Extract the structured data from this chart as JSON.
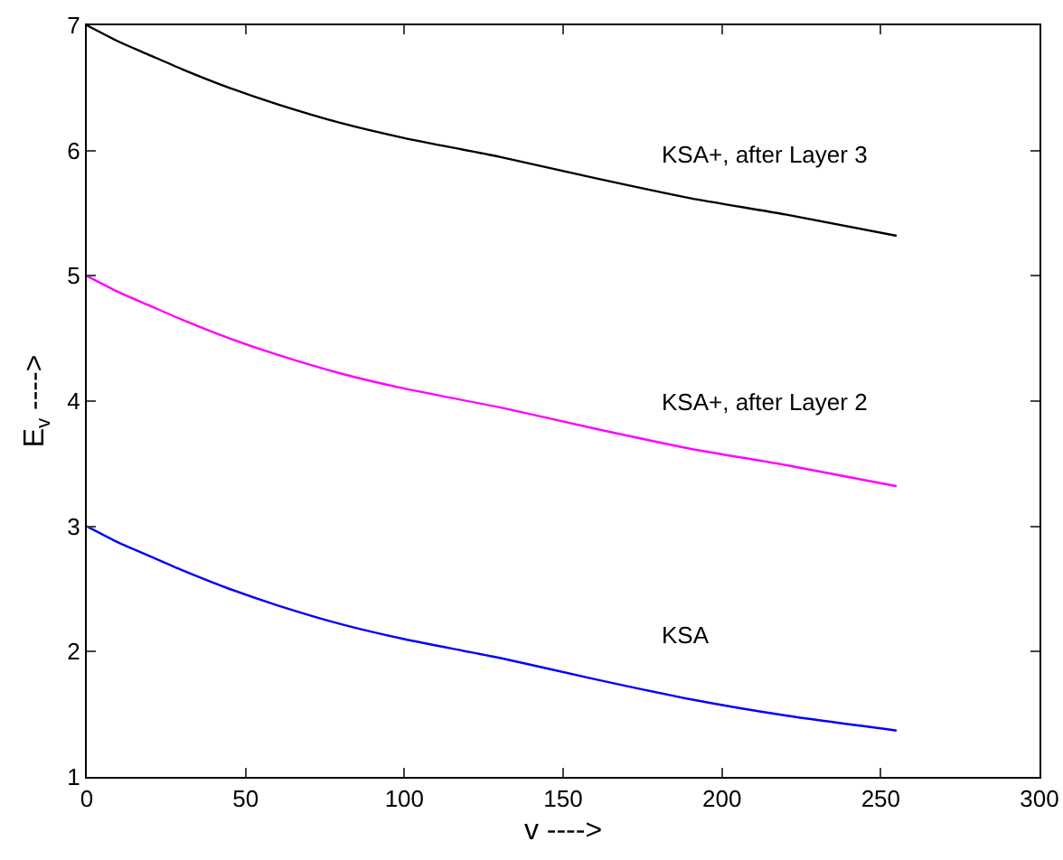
{
  "chart_data": {
    "type": "line",
    "xlabel": "v ---->",
    "ylabel": "E$_{v}$ ---->",
    "x": [
      0,
      10,
      20,
      30,
      45,
      60,
      80,
      100,
      130,
      160,
      190,
      220,
      255
    ],
    "series": [
      {
        "color": "#0000ff",
        "values": [
          3.0,
          2.87,
          2.76,
          2.65,
          2.5,
          2.37,
          2.22,
          2.1,
          1.95,
          1.78,
          1.62,
          1.49,
          1.37
        ]
      },
      {
        "color": "#ff00ff",
        "values": [
          5.0,
          4.87,
          4.76,
          4.65,
          4.5,
          4.37,
          4.22,
          4.1,
          3.95,
          3.78,
          3.62,
          3.49,
          3.32
        ]
      },
      {
        "color": "#000000",
        "values": [
          7.0,
          6.87,
          6.76,
          6.65,
          6.5,
          6.37,
          6.22,
          6.1,
          5.95,
          5.78,
          5.62,
          5.49,
          5.32
        ]
      }
    ],
    "annotations": [
      "KSA+, after Layer 3",
      "KSA+, after Layer 2",
      "KSA"
    ],
    "xlim": [
      0,
      300
    ],
    "xticks": [
      0,
      50,
      100,
      150,
      200,
      250,
      300
    ],
    "ylim": [
      1,
      7
    ],
    "yticks": [
      1,
      2,
      3,
      4,
      5,
      6,
      7
    ],
    "line_style": "solid"
  }
}
